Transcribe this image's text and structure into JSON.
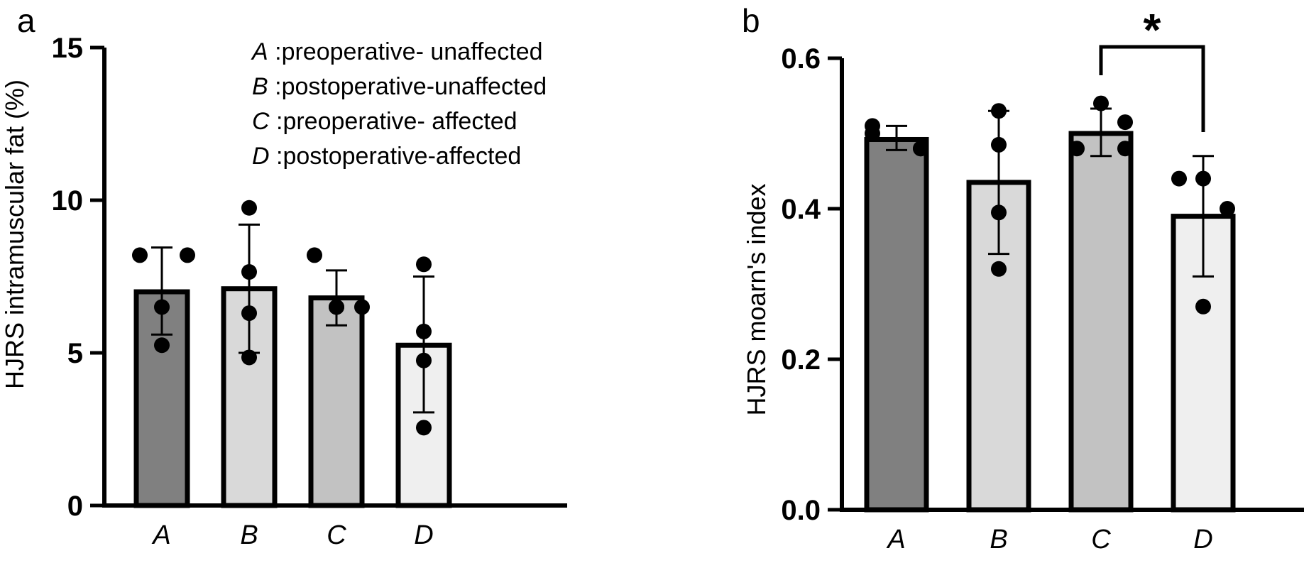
{
  "chart_data": [
    {
      "panel": "a",
      "type": "bar",
      "ylabel": "HJRS intramuscular fat (%)",
      "ylim": [
        0,
        15
      ],
      "yticks": [
        0,
        5,
        10,
        15
      ],
      "categories": [
        "A",
        "B",
        "C",
        "D"
      ],
      "values": [
        7.0,
        7.1,
        6.8,
        5.25
      ],
      "error_low": [
        5.6,
        5.0,
        5.9,
        3.05
      ],
      "error_high": [
        8.45,
        9.2,
        7.7,
        7.5
      ],
      "points": [
        [
          8.2,
          8.2,
          6.5,
          5.25
        ],
        [
          9.75,
          7.65,
          6.3,
          4.85
        ],
        [
          8.2,
          6.5,
          6.5,
          6.5
        ],
        [
          7.9,
          5.7,
          4.75,
          2.55
        ]
      ],
      "fills": [
        "#808080",
        "#d9d9d9",
        "#c2c2c2",
        "#efefef"
      ],
      "legend": [
        {
          "key": "A",
          "text": " :preoperative- unaffected"
        },
        {
          "key": "B",
          "text": " :postoperative-unaffected"
        },
        {
          "key": "C",
          "text": " :preoperative- affected"
        },
        {
          "key": "D",
          "text": " :postoperative-affected"
        }
      ]
    },
    {
      "panel": "b",
      "type": "bar",
      "ylabel": "HJRS moarn's index",
      "ylim": [
        0,
        0.6
      ],
      "yticks": [
        "0.0",
        "0.2",
        "0.4",
        "0.6"
      ],
      "categories": [
        "A",
        "B",
        "C",
        "D"
      ],
      "values": [
        0.492,
        0.435,
        0.5,
        0.39
      ],
      "error_low": [
        0.478,
        0.34,
        0.47,
        0.31
      ],
      "error_high": [
        0.51,
        0.53,
        0.533,
        0.47
      ],
      "points": [
        [
          0.5,
          0.48,
          0.51,
          0.48
        ],
        [
          0.53,
          0.485,
          0.395,
          0.32
        ],
        [
          0.54,
          0.515,
          0.48,
          0.48
        ],
        [
          0.44,
          0.4,
          0.27,
          0.44
        ]
      ],
      "fills": [
        "#808080",
        "#d9d9d9",
        "#c2c2c2",
        "#efefef"
      ],
      "significance": {
        "from": "C",
        "to": "D",
        "label": "*"
      }
    }
  ]
}
